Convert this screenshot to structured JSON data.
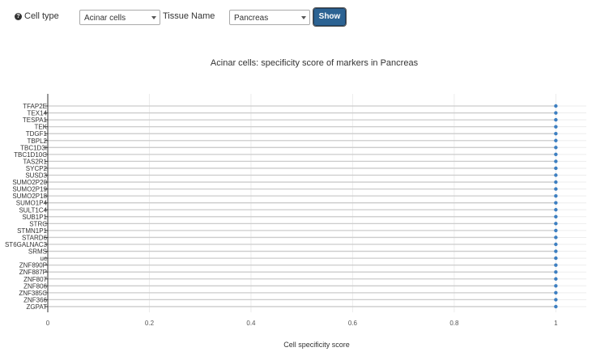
{
  "controls": {
    "help_icon": "question-circle-icon",
    "cell_type_label": "Cell type",
    "cell_type_value": "Acinar cells",
    "tissue_label": "Tissue Name",
    "tissue_value": "Pancreas",
    "show_label": "Show"
  },
  "colors": {
    "accent": "#2c6393",
    "point": "#3d7fc1",
    "line": "#cccccc"
  },
  "chart_data": {
    "type": "scatter",
    "title": "Acinar cells: specificity score of markers in Pancreas",
    "xlabel": "Cell specificity score",
    "ylabel": "",
    "xlim": [
      0,
      1.06
    ],
    "xticks": [
      "0",
      "0.2",
      "0.4",
      "0.6",
      "0.8",
      "1"
    ],
    "grid": true,
    "categories": [
      "TFAP2E",
      "TEX14",
      "TESPA1",
      "TEK",
      "TDGF1",
      "TBPL2",
      "TBC1D3I",
      "TBC1D10C",
      "TAS2R1",
      "SYCP2",
      "SUSD3",
      "SUMO2P20",
      "SUMO2P19",
      "SUMO2P18",
      "SUMO1P4",
      "SULT1C4",
      "SUB1P1",
      "STRC",
      "STMN1P1",
      "STARD6",
      "ST6GALNAC3",
      "SRMS",
      "uc",
      "ZNF890P",
      "ZNF887P",
      "ZNF807",
      "ZNF806",
      "ZNF385C",
      "ZNF366",
      "ZGPAT"
    ],
    "values": [
      1,
      1,
      1,
      1,
      1,
      1,
      1,
      1,
      1,
      1,
      1,
      1,
      1,
      1,
      1,
      1,
      1,
      1,
      1,
      1,
      1,
      1,
      1,
      1,
      1,
      1,
      1,
      1,
      1,
      1
    ]
  }
}
